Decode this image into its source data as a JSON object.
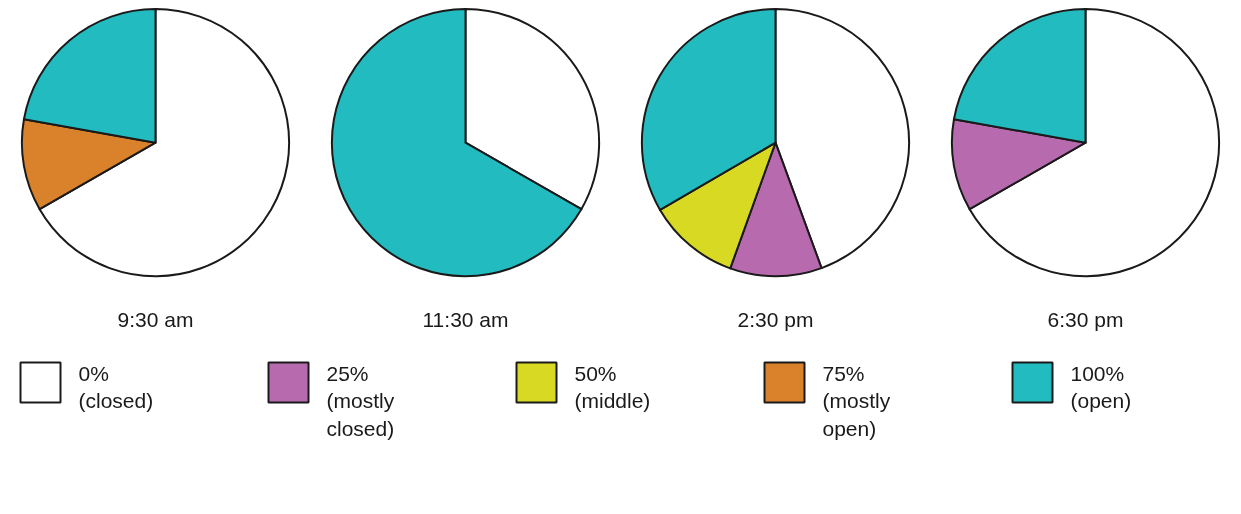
{
  "chart_data": {
    "type": "pie",
    "categories": [
      "0% (closed)",
      "25% (mostly closed)",
      "50% (middle)",
      "75% (mostly open)",
      "100% (open)"
    ],
    "colors": [
      "#ffffff",
      "#b76bae",
      "#d8d923",
      "#d9812b",
      "#22bcc0"
    ],
    "legend": "bottom",
    "series": [
      {
        "name": "9:30 am",
        "values": [
          66.7,
          0,
          0,
          11.1,
          22.2
        ]
      },
      {
        "name": "11:30 am",
        "values": [
          33.3,
          0,
          0,
          0,
          66.7
        ]
      },
      {
        "name": "2:30 pm",
        "values": [
          44.4,
          11.1,
          11.1,
          0,
          33.4
        ]
      },
      {
        "name": "6:30 pm",
        "values": [
          66.7,
          11.1,
          0,
          0,
          22.2
        ]
      }
    ]
  }
}
